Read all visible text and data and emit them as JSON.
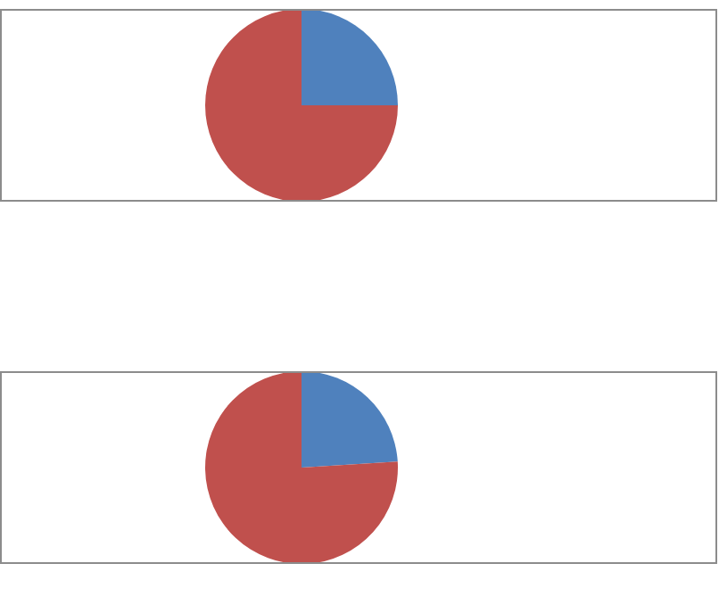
{
  "chart_data": [
    {
      "type": "pie",
      "categories": [
        null,
        null
      ],
      "values": [
        25,
        75
      ],
      "colors": [
        "#4f81bd",
        "#c0504d"
      ]
    },
    {
      "type": "pie",
      "categories": [
        null,
        null
      ],
      "values": [
        24,
        76
      ],
      "colors": [
        "#4f81bd",
        "#c0504d"
      ]
    }
  ]
}
